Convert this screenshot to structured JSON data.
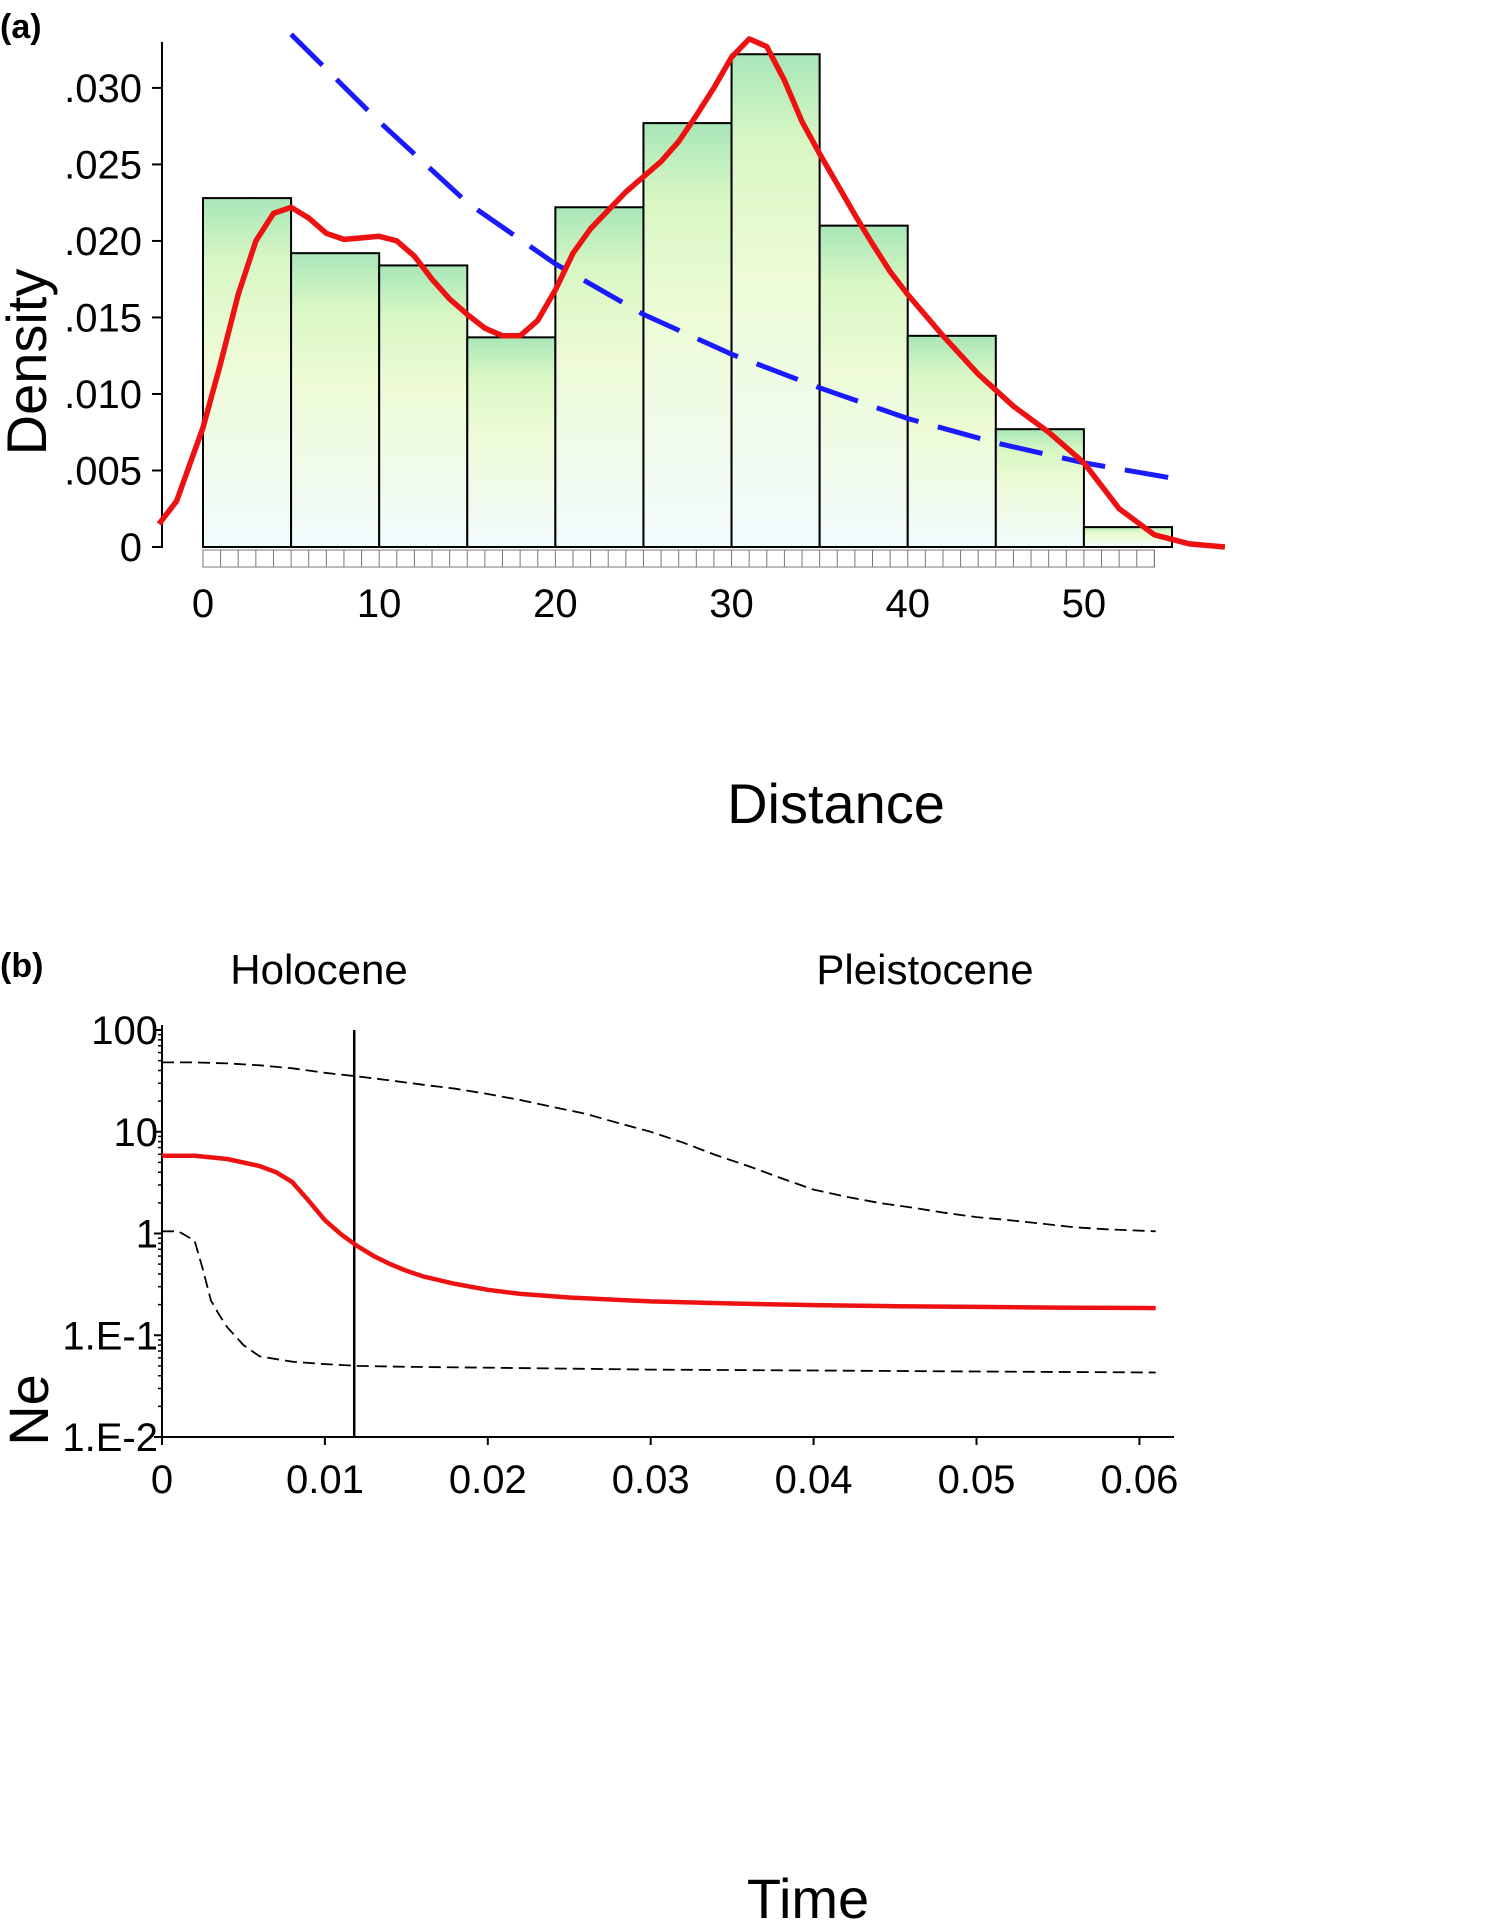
{
  "chart_data": [
    {
      "type": "bar",
      "panel_label": "(a)",
      "xlabel": "Distance",
      "ylabel": "Density",
      "xlim": [
        0,
        55
      ],
      "ylim": [
        0,
        0.033
      ],
      "xticks": [
        0,
        10,
        20,
        30,
        40,
        50
      ],
      "xtick_labels": [
        "0",
        "10",
        "20",
        "30",
        "40",
        "50"
      ],
      "yticks": [
        0,
        0.005,
        0.01,
        0.015,
        0.02,
        0.025,
        0.03
      ],
      "ytick_labels": [
        "0",
        ".005",
        ".010",
        ".015",
        ".020",
        ".025",
        ".030"
      ],
      "grid": false,
      "legend": "none",
      "bins": [
        {
          "start": 0,
          "end": 5,
          "value": 0.0228
        },
        {
          "start": 5,
          "end": 10,
          "value": 0.0192
        },
        {
          "start": 10,
          "end": 15,
          "value": 0.0184
        },
        {
          "start": 15,
          "end": 20,
          "value": 0.0137
        },
        {
          "start": 20,
          "end": 25,
          "value": 0.0222
        },
        {
          "start": 25,
          "end": 30,
          "value": 0.0277
        },
        {
          "start": 30,
          "end": 35,
          "value": 0.0322
        },
        {
          "start": 35,
          "end": 40,
          "value": 0.021
        },
        {
          "start": 40,
          "end": 45,
          "value": 0.0138
        },
        {
          "start": 45,
          "end": 50,
          "value": 0.0077
        },
        {
          "start": 50,
          "end": 55,
          "value": 0.0013
        }
      ],
      "series": [
        {
          "style": "solid",
          "color": "#ee1111",
          "x": [
            -2.5,
            -1.5,
            0,
            1,
            2,
            3,
            4,
            5,
            6,
            7,
            8,
            9,
            10,
            11,
            12,
            13,
            14,
            15,
            16,
            17,
            18,
            19,
            20,
            21,
            22,
            23,
            24,
            25,
            26,
            27,
            28,
            29,
            30,
            31,
            32,
            33,
            34,
            35,
            36,
            37,
            38,
            39,
            40,
            42,
            44,
            46,
            48,
            50,
            52,
            54,
            56,
            58
          ],
          "y": [
            0.0015,
            0.003,
            0.0078,
            0.012,
            0.0165,
            0.02,
            0.0218,
            0.0222,
            0.0215,
            0.0205,
            0.0201,
            0.0202,
            0.0203,
            0.02,
            0.019,
            0.0175,
            0.0162,
            0.0152,
            0.0143,
            0.0138,
            0.0138,
            0.0148,
            0.0168,
            0.0192,
            0.0208,
            0.022,
            0.0232,
            0.0242,
            0.0252,
            0.0265,
            0.0282,
            0.03,
            0.032,
            0.0332,
            0.0327,
            0.0305,
            0.0278,
            0.0257,
            0.0237,
            0.0217,
            0.0198,
            0.018,
            0.0165,
            0.0138,
            0.0113,
            0.0092,
            0.0075,
            0.0055,
            0.0025,
            0.0008,
            0.0002,
            0.0
          ]
        },
        {
          "style": "dashed",
          "color": "#1a1aff",
          "x": [
            5,
            10,
            15,
            20,
            25,
            30,
            35,
            40,
            45,
            50,
            55
          ],
          "y": [
            0.0335,
            0.0278,
            0.0225,
            0.0185,
            0.0152,
            0.0126,
            0.0104,
            0.0084,
            0.0068,
            0.0055,
            0.0045
          ]
        }
      ]
    },
    {
      "type": "line",
      "panel_label": "(b)",
      "xlabel": "Time",
      "ylabel": "Ne",
      "xlim": [
        0,
        0.062
      ],
      "ylim": [
        0.01,
        100
      ],
      "yscale": "log",
      "xticks": [
        0,
        0.01,
        0.02,
        0.03,
        0.04,
        0.05,
        0.06
      ],
      "xtick_labels": [
        "0",
        "0.01",
        "0.02",
        "0.03",
        "0.04",
        "0.05",
        "0.06"
      ],
      "yticks": [
        0.01,
        0.1,
        1,
        10,
        100
      ],
      "ytick_labels": [
        "1.E-2",
        "1.E-1",
        "1",
        "10",
        "100"
      ],
      "grid": false,
      "legend": "none",
      "regions": [
        "Holocene",
        "Pleistocene"
      ],
      "boundary_x": 0.0118,
      "series": [
        {
          "style": "dashed-thin",
          "color": "#000000",
          "x": [
            0,
            0.002,
            0.004,
            0.006,
            0.008,
            0.01,
            0.012,
            0.014,
            0.016,
            0.018,
            0.02,
            0.022,
            0.024,
            0.026,
            0.028,
            0.03,
            0.032,
            0.034,
            0.036,
            0.038,
            0.04,
            0.042,
            0.044,
            0.046,
            0.048,
            0.05,
            0.052,
            0.054,
            0.056,
            0.058,
            0.061
          ],
          "y": [
            48,
            48,
            47,
            45,
            42,
            38,
            35,
            32,
            29,
            26.5,
            23.5,
            20.5,
            17.5,
            15,
            12.2,
            10,
            7.8,
            5.9,
            4.6,
            3.5,
            2.7,
            2.3,
            2.0,
            1.8,
            1.6,
            1.45,
            1.35,
            1.25,
            1.15,
            1.1,
            1.05
          ]
        },
        {
          "style": "solid",
          "color": "#ee1111",
          "x": [
            0,
            0.002,
            0.004,
            0.006,
            0.007,
            0.008,
            0.009,
            0.01,
            0.011,
            0.012,
            0.013,
            0.014,
            0.015,
            0.016,
            0.018,
            0.02,
            0.022,
            0.025,
            0.03,
            0.035,
            0.04,
            0.045,
            0.05,
            0.055,
            0.061
          ],
          "y": [
            5.8,
            5.8,
            5.4,
            4.6,
            4.0,
            3.2,
            2.1,
            1.35,
            0.98,
            0.75,
            0.6,
            0.5,
            0.43,
            0.38,
            0.32,
            0.28,
            0.255,
            0.235,
            0.215,
            0.205,
            0.198,
            0.193,
            0.19,
            0.187,
            0.185
          ]
        },
        {
          "style": "dashed-thin",
          "color": "#000000",
          "x": [
            0,
            0.001,
            0.002,
            0.0025,
            0.003,
            0.0035,
            0.004,
            0.005,
            0.006,
            0.008,
            0.01,
            0.012,
            0.015,
            0.02,
            0.03,
            0.04,
            0.05,
            0.061
          ],
          "y": [
            1.05,
            1.05,
            0.85,
            0.45,
            0.22,
            0.16,
            0.12,
            0.08,
            0.062,
            0.055,
            0.052,
            0.05,
            0.049,
            0.048,
            0.046,
            0.045,
            0.044,
            0.043
          ]
        }
      ]
    }
  ]
}
